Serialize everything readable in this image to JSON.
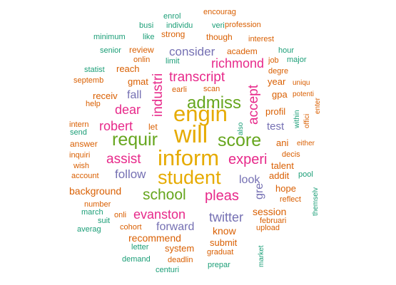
{
  "colors": {
    "green": "#1b9e77",
    "orange": "#d95f02",
    "purple": "#7570b3",
    "pink": "#e7298a",
    "lime": "#66a61e",
    "gold": "#e6ab02"
  },
  "words": [
    {
      "text": "will",
      "size": 34,
      "color": "gold"
    },
    {
      "text": "inform",
      "size": 31,
      "color": "gold"
    },
    {
      "text": "engin",
      "size": 31,
      "color": "gold"
    },
    {
      "text": "student",
      "size": 27,
      "color": "gold"
    },
    {
      "text": "requir",
      "size": 25,
      "color": "lime"
    },
    {
      "text": "score",
      "size": 25,
      "color": "lime"
    },
    {
      "text": "admiss",
      "size": 24,
      "color": "lime"
    },
    {
      "text": "school",
      "size": 21,
      "color": "lime"
    },
    {
      "text": "experi",
      "size": 20,
      "color": "pink"
    },
    {
      "text": "pleas",
      "size": 20,
      "color": "pink"
    },
    {
      "text": "assist",
      "size": 19,
      "color": "pink"
    },
    {
      "text": "industri",
      "size": 19,
      "color": "pink"
    },
    {
      "text": "accept",
      "size": 19,
      "color": "pink"
    },
    {
      "text": "transcript",
      "size": 19,
      "color": "pink"
    },
    {
      "text": "richmond",
      "size": 18,
      "color": "pink"
    },
    {
      "text": "dear",
      "size": 18,
      "color": "pink"
    },
    {
      "text": "robert",
      "size": 18,
      "color": "pink"
    },
    {
      "text": "evanston",
      "size": 18,
      "color": "pink"
    },
    {
      "text": "twitter",
      "size": 18,
      "color": "purple"
    },
    {
      "text": "follow",
      "size": 17,
      "color": "purple"
    },
    {
      "text": "consider",
      "size": 17,
      "color": "purple"
    },
    {
      "text": "forward",
      "size": 16,
      "color": "purple"
    },
    {
      "text": "look",
      "size": 16,
      "color": "purple"
    },
    {
      "text": "fall",
      "size": 16,
      "color": "purple"
    },
    {
      "text": "gre",
      "size": 16,
      "color": "purple"
    },
    {
      "text": "test",
      "size": 15,
      "color": "purple"
    },
    {
      "text": "background",
      "size": 14,
      "color": "orange"
    },
    {
      "text": "session",
      "size": 14,
      "color": "orange"
    },
    {
      "text": "recommend",
      "size": 14,
      "color": "orange"
    },
    {
      "text": "know",
      "size": 14,
      "color": "orange"
    },
    {
      "text": "system",
      "size": 13,
      "color": "orange"
    },
    {
      "text": "submit",
      "size": 13,
      "color": "orange"
    },
    {
      "text": "reach",
      "size": 13,
      "color": "orange"
    },
    {
      "text": "gmat",
      "size": 13,
      "color": "orange"
    },
    {
      "text": "profil",
      "size": 13,
      "color": "orange"
    },
    {
      "text": "gpa",
      "size": 13,
      "color": "orange"
    },
    {
      "text": "hope",
      "size": 13,
      "color": "orange"
    },
    {
      "text": "addit",
      "size": 13,
      "color": "orange"
    },
    {
      "text": "talent",
      "size": 13,
      "color": "orange"
    },
    {
      "text": "ani",
      "size": 13,
      "color": "orange"
    },
    {
      "text": "year",
      "size": 13,
      "color": "orange"
    },
    {
      "text": "receiv",
      "size": 13,
      "color": "orange"
    },
    {
      "text": "let",
      "size": 12,
      "color": "orange"
    },
    {
      "text": "review",
      "size": 12,
      "color": "orange"
    },
    {
      "text": "strong",
      "size": 12,
      "color": "orange"
    },
    {
      "text": "though",
      "size": 12,
      "color": "orange"
    },
    {
      "text": "academ",
      "size": 12,
      "color": "orange"
    },
    {
      "text": "answer",
      "size": 12,
      "color": "orange"
    },
    {
      "text": "encourag",
      "size": 11,
      "color": "orange"
    },
    {
      "text": "profession",
      "size": 11,
      "color": "orange"
    },
    {
      "text": "interest",
      "size": 11,
      "color": "orange"
    },
    {
      "text": "degre",
      "size": 11,
      "color": "orange"
    },
    {
      "text": "septemb",
      "size": 11,
      "color": "orange"
    },
    {
      "text": "scan",
      "size": 11,
      "color": "orange"
    },
    {
      "text": "graduat",
      "size": 11,
      "color": "orange"
    },
    {
      "text": "deadlin",
      "size": 11,
      "color": "orange"
    },
    {
      "text": "upload",
      "size": 11,
      "color": "orange"
    },
    {
      "text": "februari",
      "size": 11,
      "color": "orange"
    },
    {
      "text": "number",
      "size": 11,
      "color": "orange"
    },
    {
      "text": "help",
      "size": 11,
      "color": "orange"
    },
    {
      "text": "onlin",
      "size": 11,
      "color": "orange"
    },
    {
      "text": "earli",
      "size": 11,
      "color": "orange"
    },
    {
      "text": "job",
      "size": 11,
      "color": "orange"
    },
    {
      "text": "decis",
      "size": 11,
      "color": "orange"
    },
    {
      "text": "account",
      "size": 11,
      "color": "orange"
    },
    {
      "text": "inquiri",
      "size": 11,
      "color": "orange"
    },
    {
      "text": "wish",
      "size": 11,
      "color": "orange"
    },
    {
      "text": "cohort",
      "size": 11,
      "color": "orange"
    },
    {
      "text": "intern",
      "size": 11,
      "color": "orange"
    },
    {
      "text": "reflect",
      "size": 11,
      "color": "orange"
    },
    {
      "text": "enter",
      "size": 10,
      "color": "orange"
    },
    {
      "text": "offici",
      "size": 10,
      "color": "orange"
    },
    {
      "text": "potenti",
      "size": 10,
      "color": "orange"
    },
    {
      "text": "uniqu",
      "size": 10,
      "color": "orange"
    },
    {
      "text": "either",
      "size": 10,
      "color": "orange"
    },
    {
      "text": "onli",
      "size": 11,
      "color": "orange"
    },
    {
      "text": "enrol",
      "size": 11,
      "color": "green"
    },
    {
      "text": "busi",
      "size": 11,
      "color": "green"
    },
    {
      "text": "individu",
      "size": 11,
      "color": "green"
    },
    {
      "text": "veri",
      "size": 11,
      "color": "green"
    },
    {
      "text": "minimum",
      "size": 11,
      "color": "green"
    },
    {
      "text": "like",
      "size": 11,
      "color": "green"
    },
    {
      "text": "senior",
      "size": 11,
      "color": "green"
    },
    {
      "text": "hour",
      "size": 11,
      "color": "green"
    },
    {
      "text": "major",
      "size": 11,
      "color": "green"
    },
    {
      "text": "statist",
      "size": 11,
      "color": "green"
    },
    {
      "text": "limit",
      "size": 11,
      "color": "green"
    },
    {
      "text": "also",
      "size": 10,
      "color": "green"
    },
    {
      "text": "within",
      "size": 10,
      "color": "green"
    },
    {
      "text": "send",
      "size": 11,
      "color": "green"
    },
    {
      "text": "pool",
      "size": 11,
      "color": "green"
    },
    {
      "text": "themselv",
      "size": 10,
      "color": "green"
    },
    {
      "text": "march",
      "size": 11,
      "color": "green"
    },
    {
      "text": "suit",
      "size": 11,
      "color": "green"
    },
    {
      "text": "averag",
      "size": 11,
      "color": "green"
    },
    {
      "text": "letter",
      "size": 11,
      "color": "green"
    },
    {
      "text": "demand",
      "size": 11,
      "color": "green"
    },
    {
      "text": "centuri",
      "size": 11,
      "color": "green"
    },
    {
      "text": "prepar",
      "size": 11,
      "color": "green"
    },
    {
      "text": "market",
      "size": 10,
      "color": "green"
    }
  ]
}
